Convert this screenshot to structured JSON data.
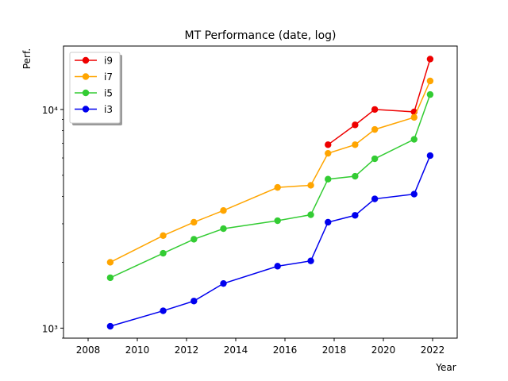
{
  "chart_data": {
    "type": "line",
    "title": "MT Performance (date, log)",
    "xlabel": "Year",
    "ylabel": "Perf.",
    "xlim": [
      2007.0,
      2023.0
    ],
    "ylim": [
      900,
      19500
    ],
    "y_scale": "log",
    "x_ticks": [
      2008,
      2010,
      2012,
      2014,
      2016,
      2018,
      2020,
      2022
    ],
    "y_ticks": [
      {
        "value": 1000,
        "label": "10³"
      },
      {
        "value": 10000,
        "label": "10⁴"
      }
    ],
    "grid": false,
    "legend_position": "top-left",
    "series": [
      {
        "name": "i9",
        "color": "#ee0000",
        "x": [
          2017.75,
          2018.85,
          2019.65,
          2021.25,
          2021.9
        ],
        "y": [
          6900,
          8500,
          10000,
          9750,
          17000
        ]
      },
      {
        "name": "i7",
        "color": "#ffa500",
        "x": [
          2008.9,
          2011.05,
          2012.3,
          2013.5,
          2015.7,
          2017.05,
          2017.75,
          2018.85,
          2019.65,
          2021.25,
          2021.9
        ],
        "y": [
          2000,
          2650,
          3050,
          3450,
          4400,
          4500,
          6300,
          6900,
          8100,
          9200,
          13500
        ]
      },
      {
        "name": "i5",
        "color": "#33cc33",
        "x": [
          2008.9,
          2011.05,
          2012.3,
          2013.5,
          2015.7,
          2017.05,
          2017.75,
          2018.85,
          2019.65,
          2021.25,
          2021.9
        ],
        "y": [
          1700,
          2200,
          2550,
          2850,
          3100,
          3300,
          4800,
          4950,
          5950,
          7300,
          11700
        ]
      },
      {
        "name": "i3",
        "color": "#0000ee",
        "x": [
          2008.9,
          2011.05,
          2012.3,
          2013.5,
          2015.7,
          2017.05,
          2017.75,
          2018.85,
          2019.65,
          2021.25,
          2021.9
        ],
        "y": [
          1020,
          1200,
          1330,
          1600,
          1920,
          2030,
          3050,
          3280,
          3900,
          4100,
          6150
        ]
      }
    ]
  }
}
